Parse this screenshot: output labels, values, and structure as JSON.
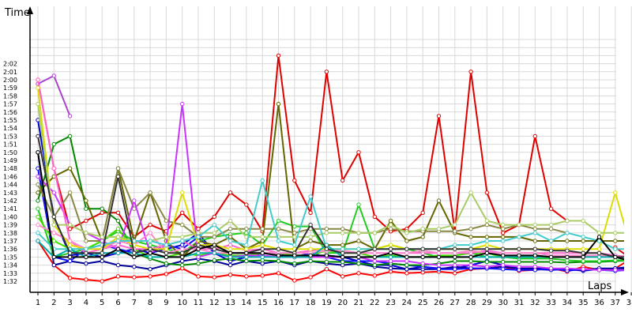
{
  "chart_data": {
    "type": "line",
    "ylabel": "Time",
    "xlabel": "Laps",
    "x": [
      1,
      2,
      3,
      4,
      5,
      6,
      7,
      8,
      9,
      10,
      11,
      12,
      13,
      14,
      15,
      16,
      17,
      18,
      19,
      20,
      21,
      22,
      23,
      24,
      25,
      26,
      27,
      28,
      29,
      30,
      31,
      32,
      33,
      34,
      35,
      36,
      37,
      38
    ],
    "ytick_labels": [
      "1:32",
      "1:33",
      "1:34",
      "1:35",
      "1:36",
      "1:37",
      "1:38",
      "1:39",
      "1:40",
      "1:41",
      "1:42",
      "1:43",
      "1:44",
      "1:46",
      "1:48",
      "1:49",
      "1:50",
      "1:51",
      "1:53",
      "1:54",
      "1:55",
      "1:56",
      "1:57",
      "1:58",
      "1:59",
      "2:00",
      "2:01",
      "2:02"
    ],
    "xlim": [
      1,
      38
    ],
    "grid": true,
    "legend": "none",
    "series": [
      {
        "color": "#ff0000",
        "values": [
          97,
          94,
          92.4,
          92.2,
          92,
          92.6,
          92.5,
          92.6,
          92.9,
          93.6,
          92.6,
          92.5,
          92.8,
          92.6,
          92.7,
          93.0,
          92.1,
          92.5,
          93.5,
          92.6,
          93.0,
          92.7,
          93.2,
          93.0,
          93.1,
          93.2,
          93.0,
          93.5,
          93.6,
          93.8,
          93.3,
          93.4,
          93.6,
          93.2,
          93.8,
          93.4,
          93.6,
          94.8
        ]
      },
      {
        "color": "#e00000",
        "values": [
          117,
          106,
          98.5,
          99.5,
          100.5,
          100.5,
          97.5,
          99,
          98.2,
          100.5,
          98.5,
          100,
          103,
          101.5,
          98.2,
          120,
          104.5,
          100.5,
          118,
          104.5,
          108,
          100,
          98.2,
          98.5,
          100.5,
          112.5,
          98.2,
          118,
          103,
          98,
          99,
          110,
          101,
          99.5,
          null,
          null,
          96.2,
          94.8
        ]
      },
      {
        "color": "#0000cc",
        "values": [
          112,
          100,
          95.2,
          95.5,
          95,
          95.5,
          96,
          95.5,
          96,
          96.5,
          98,
          95.5,
          94.5,
          95,
          95.5,
          95.5,
          95,
          95,
          95.2,
          95,
          94.5,
          94,
          94,
          93.5,
          93.8,
          93.6,
          93.6,
          94,
          94.5,
          94,
          93.6,
          93.5,
          93.4,
          93.5,
          93.3,
          93.5,
          93.6,
          93.8
        ]
      },
      {
        "color": "#000099",
        "values": [
          108,
          94,
          94.5,
          94.2,
          94.5,
          94,
          93.8,
          93.5,
          94,
          94.5,
          94.8,
          94.5,
          94,
          94.5,
          94.2,
          94.5,
          94,
          94.5,
          94.2,
          94,
          94.2,
          93.8,
          93.6,
          93.5,
          93.5,
          93.5,
          93.8,
          93.6,
          93.6,
          93.8,
          93.6,
          93.6,
          93.6,
          93.4,
          93.4,
          93.6,
          93.6,
          93.5
        ]
      },
      {
        "color": "#1010ff",
        "values": [
          106,
          95,
          94.5,
          96,
          96.5,
          96,
          95.5,
          96,
          96.5,
          96,
          97.5,
          95.5,
          95,
          95.2,
          95.5,
          95.2,
          95,
          95.5,
          95,
          94.5,
          94.5,
          94.5,
          94.2,
          94,
          93.8,
          93.5,
          93.5,
          93.6,
          93.6,
          93.5,
          93.4,
          93.4,
          93.6,
          93.3,
          93.5,
          93.4,
          93.3,
          93.4
        ]
      },
      {
        "color": "#008800",
        "values": [
          102,
          109,
          110,
          101,
          101,
          99.5,
          95.5,
          94.8,
          94.2,
          94,
          94.2,
          94.6,
          94.8,
          94.5,
          94.6,
          94.5,
          94.2,
          94.5,
          94.4,
          94.4,
          94.2,
          94,
          94.2,
          94,
          94,
          94.2,
          94.5,
          94.5,
          94.4,
          94.4,
          94.4,
          94.4,
          94.4,
          94.3,
          94.4,
          94.4,
          94.5,
          94.6
        ]
      },
      {
        "color": "#22cc22",
        "values": [
          101,
          95,
          95.5,
          96,
          97,
          98.2,
          97,
          96.5,
          96,
          95.5,
          97,
          97.5,
          97.8,
          98,
          96.5,
          99.5,
          98.8,
          98.8,
          95.5,
          95.5,
          101.5,
          96,
          96.5,
          96,
          95.5,
          95,
          95.2,
          95.5,
          95,
          95,
          94.8,
          94.8,
          94.8,
          94.6,
          94.5,
          94.5,
          94.6,
          94.6
        ]
      },
      {
        "color": "#44dd00",
        "values": [
          100,
          97,
          96,
          96,
          97,
          98.5,
          96,
          95,
          95,
          95.5,
          95.2,
          95.5,
          95.2,
          95.2,
          95.5,
          95.5,
          95.2,
          95.2,
          95.8,
          95.5,
          95.5,
          95,
          95.2,
          95,
          95,
          95.2,
          95.2,
          95.5,
          95.5,
          95,
          95,
          95.2,
          95,
          95,
          95,
          95.2,
          95,
          95.2
        ]
      },
      {
        "color": "#666600",
        "values": [
          103,
          105,
          106,
          102,
          97,
          106,
          97,
          103,
          97,
          95,
          97,
          96.5,
          97.5,
          96,
          97,
          114,
          96,
          97,
          96.5,
          96.5,
          97,
          96,
          99.5,
          97,
          97.5,
          102,
          98,
          97.5,
          97.5,
          97.5,
          97.5,
          97,
          97,
          97,
          97,
          97,
          97,
          97
        ]
      },
      {
        "color": "#888844",
        "values": [
          104,
          100,
          103,
          97,
          97,
          106,
          101,
          103,
          99.5,
          99,
          97.5,
          97.5,
          98.5,
          98.5,
          98.5,
          98.5,
          98,
          98.5,
          98.5,
          98.5,
          98,
          98,
          98.5,
          98.2,
          98.2,
          98.2,
          98.2,
          98.5,
          99,
          98.5,
          99,
          98.5,
          98.5,
          98,
          null,
          null,
          null,
          null
        ]
      },
      {
        "color": "#cc33ff",
        "values": [
          105,
          103,
          99,
          98,
          97,
          96,
          102,
          95.5,
          96.5,
          114,
          95,
          95.5,
          95,
          95.2,
          95.2,
          95,
          95,
          95,
          95,
          95,
          95,
          94.5,
          94.5,
          94.5,
          94.2,
          94,
          94,
          94,
          93.8,
          94,
          93.8,
          93.8,
          93.6,
          93.6,
          93.5,
          93.4,
          93.4,
          93.4
        ]
      },
      {
        "color": "#aa44cc",
        "values": [
          116.5,
          117.5,
          112.5,
          null,
          null,
          null,
          null,
          null,
          null,
          null,
          null,
          null,
          null,
          null,
          null,
          null,
          null,
          null,
          null,
          null,
          null,
          null,
          null,
          null,
          null,
          null,
          null,
          null,
          null,
          null,
          null,
          null,
          null,
          null,
          null,
          null,
          null,
          null
        ]
      },
      {
        "color": "#ff66cc",
        "values": [
          117,
          106,
          97,
          95.5,
          96,
          96.5,
          96,
          96,
          96.5,
          97,
          96,
          96,
          96.5,
          95.8,
          96,
          95.5,
          95.5,
          95.8,
          96,
          95.8,
          95.5,
          95.5,
          95.5,
          95.5,
          95.5,
          95.5,
          95.5,
          95.5,
          95.8,
          95.5,
          95.5,
          95.5,
          95.5,
          95.5,
          95.5,
          95.5,
          95.2,
          95
        ]
      },
      {
        "color": "#ff88cc",
        "values": [
          99,
          98,
          97,
          96,
          96,
          97,
          96.5,
          98,
          95.5,
          96,
          96,
          95.5,
          95.5,
          95.5,
          95.5,
          95.5,
          95.5,
          95.5,
          95.8,
          95.8,
          95.5,
          95.5,
          95.5,
          95.5,
          95.8,
          95.5,
          95.5,
          95.8,
          95.5,
          95.5,
          95.5,
          95.5,
          95.2,
          95.2,
          95.2,
          95.2,
          95,
          95
        ]
      },
      {
        "color": "#dddd00",
        "values": [
          116,
          99,
          96.5,
          96,
          96,
          97.5,
          96.5,
          96,
          96,
          103,
          96.5,
          96.5,
          96,
          96,
          96.5,
          96,
          96,
          96,
          96,
          96,
          96,
          96,
          96.5,
          96,
          96,
          96,
          96,
          96,
          96.5,
          96,
          96,
          96,
          96,
          96,
          96,
          96,
          103,
          96
        ]
      },
      {
        "color": "#aacc66",
        "values": [
          114,
          99,
          99,
          98,
          97.5,
          97.5,
          97,
          97,
          97.5,
          97.5,
          98,
          98,
          99.5,
          97.5,
          97.5,
          97.5,
          97.5,
          97.5,
          98,
          98,
          98,
          98,
          99,
          98,
          98.5,
          98.5,
          99,
          103,
          99.5,
          99,
          99,
          99,
          99,
          99.5,
          99.5,
          98,
          98,
          98
        ]
      },
      {
        "color": "#44cccc",
        "values": [
          98,
          96,
          96,
          96,
          96.5,
          97,
          97,
          97,
          96.5,
          97,
          97.5,
          99,
          97,
          96.5,
          104.5,
          97,
          96.5,
          102.5,
          96,
          96,
          96,
          96,
          96,
          96,
          96,
          96,
          96.5,
          96.5,
          97,
          97,
          97.5,
          98,
          97,
          98,
          97.5,
          97,
          96,
          96
        ]
      },
      {
        "color": "#00aaaa",
        "values": [
          97,
          95,
          96,
          95,
          95.5,
          95.5,
          95.5,
          95,
          95,
          95,
          95.5,
          95.5,
          95,
          95,
          95,
          95,
          95,
          95,
          96.5,
          95,
          95,
          95,
          95,
          95,
          95,
          95,
          95,
          95,
          95,
          95,
          95,
          95,
          95,
          95,
          95,
          95,
          95,
          95
        ]
      },
      {
        "color": "#333333",
        "values": [
          110,
          100,
          95.5,
          95.5,
          95.5,
          105,
          95.5,
          96,
          95.5,
          95.5,
          96.5,
          96,
          95.5,
          95.5,
          96,
          96,
          95.5,
          99,
          96,
          95.5,
          95.5,
          96,
          96,
          96,
          96,
          96,
          96,
          96,
          96,
          96,
          96,
          96,
          95.8,
          95.8,
          95.5,
          95.5,
          95,
          95
        ]
      },
      {
        "color": "#000000",
        "values": [
          108,
          95,
          95,
          95,
          95,
          96,
          95,
          95.5,
          95,
          95,
          96,
          96.5,
          95.5,
          95.5,
          95.5,
          95.2,
          95.2,
          95.2,
          95.2,
          95,
          95,
          95,
          95.5,
          95,
          95,
          95,
          95,
          95,
          95.5,
          95.2,
          95.2,
          95.2,
          95,
          95,
          95,
          97.5,
          95,
          94.5
        ]
      }
    ]
  }
}
